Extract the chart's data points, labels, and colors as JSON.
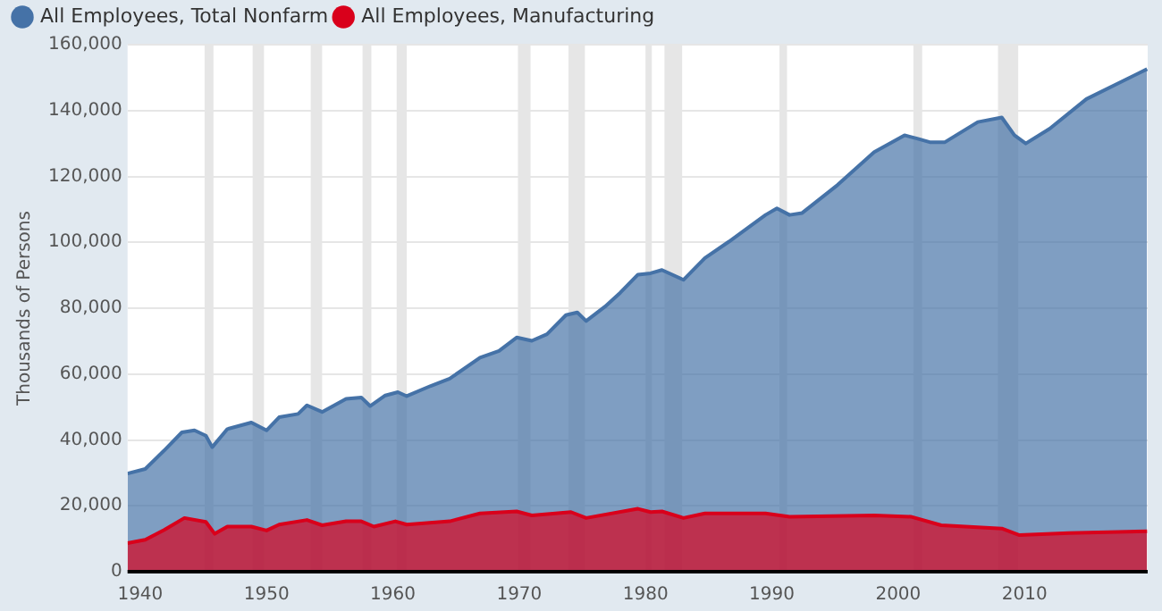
{
  "chart_data": {
    "type": "area",
    "ylabel": "Thousands of Persons",
    "xlim": [
      1939,
      2019.75
    ],
    "xticks": [
      1940,
      1950,
      1960,
      1970,
      1980,
      1990,
      2000,
      2010
    ],
    "ylim": [
      0,
      160000
    ],
    "yticks": [
      0,
      {
        "value": 20000,
        "label": "20,000"
      },
      {
        "value": 40000,
        "label": "40,000"
      },
      {
        "value": 60000,
        "label": "60,000"
      },
      {
        "value": 80000,
        "label": "80,000"
      },
      {
        "value": 100000,
        "label": "100,000"
      },
      {
        "value": 120000,
        "label": "120,000"
      },
      {
        "value": 140000,
        "label": "140,000"
      },
      {
        "value": 160000,
        "label": "160,000"
      }
    ],
    "grid": "y",
    "legend": "top left",
    "series": [
      {
        "name": "All Employees, Total Nonfarm",
        "color": "#4572a7",
        "x": [
          1939,
          1940.4,
          1941.9,
          1943.3,
          1944.3,
          1945.2,
          1945.7,
          1946.9,
          1948.8,
          1950,
          1951,
          1952.5,
          1953.2,
          1954.4,
          1956.3,
          1957.5,
          1958.2,
          1959.4,
          1960.4,
          1961.1,
          1963,
          1964.5,
          1966.9,
          1968.4,
          1969.8,
          1971,
          1972.2,
          1973.7,
          1974.6,
          1975.3,
          1976.8,
          1978,
          1979.4,
          1980.4,
          1981.3,
          1983,
          1984.7,
          1986.6,
          1989.5,
          1990.4,
          1991.4,
          1992.4,
          1995.2,
          1998.1,
          2000.5,
          2001.5,
          2002.5,
          2003.7,
          2006.3,
          2008.2,
          2009.2,
          2010.1,
          2012,
          2014.9,
          2019.7
        ],
        "values": [
          29800,
          31200,
          36800,
          42300,
          42900,
          41300,
          37800,
          43300,
          45300,
          42900,
          46900,
          47900,
          50500,
          48500,
          52500,
          52900,
          50300,
          53500,
          54500,
          53300,
          56400,
          58600,
          65000,
          67000,
          71100,
          70100,
          72100,
          77900,
          78700,
          76100,
          80500,
          84700,
          90200,
          90600,
          91600,
          88600,
          95200,
          100200,
          108300,
          110300,
          108300,
          108900,
          117400,
          127400,
          132500,
          131500,
          130400,
          130400,
          136500,
          137900,
          132500,
          130000,
          134500,
          143500,
          152600
        ]
      },
      {
        "name": "All Employees, Manufacturing",
        "color": "#d9001b",
        "x": [
          1939,
          1940.4,
          1941.9,
          1943.5,
          1945.2,
          1945.9,
          1946.9,
          1948.8,
          1950,
          1951,
          1953.2,
          1954.4,
          1956.3,
          1957.5,
          1958.5,
          1960.2,
          1961.1,
          1964.5,
          1966.9,
          1969.8,
          1971,
          1974.1,
          1975.3,
          1979.4,
          1980.4,
          1981.3,
          1983,
          1984.7,
          1989.5,
          1991.4,
          1998.1,
          2001,
          2003.4,
          2008.2,
          2009.6,
          2013.5,
          2019.7
        ],
        "values": [
          8700,
          9700,
          12700,
          16300,
          15100,
          11500,
          13700,
          13700,
          12500,
          14300,
          15700,
          14100,
          15300,
          15300,
          13700,
          15300,
          14300,
          15300,
          17700,
          18300,
          17100,
          18100,
          16300,
          19100,
          18100,
          18300,
          16300,
          17700,
          17700,
          16700,
          17100,
          16700,
          14100,
          13100,
          11100,
          11700,
          12300
        ]
      }
    ],
    "bands": [
      {
        "axis": "x",
        "from": 1945.1,
        "to": 1945.8,
        "color": "#e6e6e6"
      },
      {
        "axis": "x",
        "from": 1948.9,
        "to": 1949.8,
        "color": "#e6e6e6"
      },
      {
        "axis": "x",
        "from": 1953.5,
        "to": 1954.4,
        "color": "#e6e6e6"
      },
      {
        "axis": "x",
        "from": 1957.6,
        "to": 1958.3,
        "color": "#e6e6e6"
      },
      {
        "axis": "x",
        "from": 1960.3,
        "to": 1961.1,
        "color": "#e6e6e6"
      },
      {
        "axis": "x",
        "from": 1969.9,
        "to": 1970.9,
        "color": "#e6e6e6"
      },
      {
        "axis": "x",
        "from": 1973.9,
        "to": 1975.2,
        "color": "#e6e6e6"
      },
      {
        "axis": "x",
        "from": 1980,
        "to": 1980.5,
        "color": "#e6e6e6"
      },
      {
        "axis": "x",
        "from": 1981.5,
        "to": 1982.9,
        "color": "#e6e6e6"
      },
      {
        "axis": "x",
        "from": 1990.6,
        "to": 1991.2,
        "color": "#e6e6e6"
      },
      {
        "axis": "x",
        "from": 2001.2,
        "to": 2001.9,
        "color": "#e6e6e6"
      },
      {
        "axis": "x",
        "from": 2007.9,
        "to": 2009.5,
        "color": "#e6e6e6"
      }
    ]
  }
}
